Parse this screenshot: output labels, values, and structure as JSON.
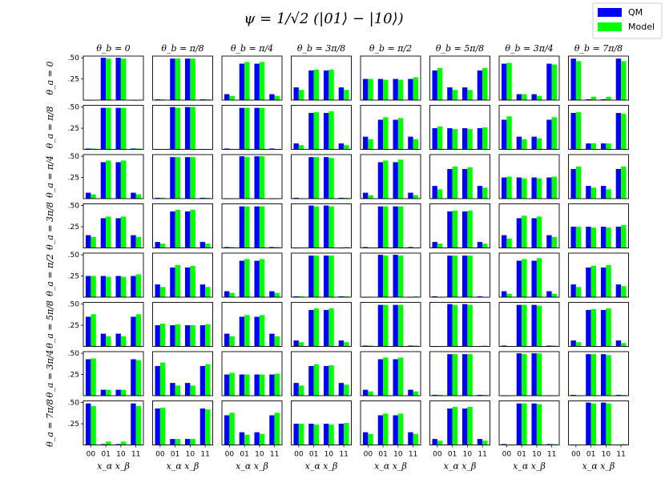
{
  "chart_data": {
    "type": "bar",
    "title": "ψ = 1/√2 (|01⟩ − |10⟩)",
    "title_parts": {
      "lhs": "ψ",
      "eq": "=",
      "num": "1",
      "den": "√2",
      "rhs": "(|01⟩ − |10⟩)"
    },
    "legend": [
      {
        "name": "QM",
        "color": "#0000ff"
      },
      {
        "name": "Model",
        "color": "#00ff00"
      }
    ],
    "column_labels": [
      "θ_b = 0",
      "θ_b = π/8",
      "θ_b = π/4",
      "θ_b = 3π/8",
      "θ_b = π/2",
      "θ_b = 5π/8",
      "θ_b = 3π/4",
      "θ_b = 7π/8"
    ],
    "row_labels": [
      "θ_a = 0",
      "θ_a = π/8",
      "θ_a = π/4",
      "θ_a = 3π/8",
      "θ_a = π/2",
      "θ_a = 5π/8",
      "θ_a = 3π/4",
      "θ_a = 7π/8"
    ],
    "categories": [
      "00",
      "01",
      "10",
      "11"
    ],
    "xlabel": "x_α x_β",
    "y_ticks": [
      ".25",
      ".50"
    ],
    "ylim": [
      0,
      0.52
    ],
    "grid": [
      [
        {
          "qm": [
            0.0,
            0.5,
            0.5,
            0.0
          ],
          "model": [
            0.0,
            0.49,
            0.49,
            0.0
          ]
        },
        {
          "qm": [
            0.01,
            0.49,
            0.49,
            0.01
          ],
          "model": [
            0.01,
            0.49,
            0.49,
            0.01
          ]
        },
        {
          "qm": [
            0.07,
            0.43,
            0.43,
            0.07
          ],
          "model": [
            0.05,
            0.45,
            0.45,
            0.05
          ]
        },
        {
          "qm": [
            0.15,
            0.35,
            0.35,
            0.15
          ],
          "model": [
            0.12,
            0.36,
            0.36,
            0.12
          ]
        },
        {
          "qm": [
            0.25,
            0.25,
            0.25,
            0.25
          ],
          "model": [
            0.25,
            0.24,
            0.24,
            0.27
          ]
        },
        {
          "qm": [
            0.35,
            0.15,
            0.15,
            0.35
          ],
          "model": [
            0.38,
            0.12,
            0.12,
            0.38
          ]
        },
        {
          "qm": [
            0.43,
            0.07,
            0.07,
            0.43
          ],
          "model": [
            0.44,
            0.07,
            0.05,
            0.42
          ]
        },
        {
          "qm": [
            0.49,
            0.01,
            0.01,
            0.49
          ],
          "model": [
            0.46,
            0.04,
            0.04,
            0.46
          ]
        }
      ],
      [
        {
          "qm": [
            0.01,
            0.49,
            0.49,
            0.01
          ],
          "model": [
            0.01,
            0.49,
            0.49,
            0.01
          ]
        },
        {
          "qm": [
            0.0,
            0.5,
            0.5,
            0.0
          ],
          "model": [
            0.0,
            0.49,
            0.5,
            0.0
          ]
        },
        {
          "qm": [
            0.01,
            0.49,
            0.49,
            0.01
          ],
          "model": [
            0.0,
            0.49,
            0.49,
            0.0
          ]
        },
        {
          "qm": [
            0.07,
            0.43,
            0.43,
            0.07
          ],
          "model": [
            0.05,
            0.44,
            0.45,
            0.05
          ]
        },
        {
          "qm": [
            0.15,
            0.35,
            0.35,
            0.15
          ],
          "model": [
            0.12,
            0.38,
            0.37,
            0.12
          ]
        },
        {
          "qm": [
            0.25,
            0.25,
            0.25,
            0.25
          ],
          "model": [
            0.27,
            0.24,
            0.24,
            0.26
          ]
        },
        {
          "qm": [
            0.35,
            0.15,
            0.15,
            0.35
          ],
          "model": [
            0.39,
            0.12,
            0.13,
            0.38
          ]
        },
        {
          "qm": [
            0.43,
            0.07,
            0.07,
            0.43
          ],
          "model": [
            0.44,
            0.07,
            0.07,
            0.42
          ]
        }
      ],
      [
        {
          "qm": [
            0.07,
            0.43,
            0.43,
            0.07
          ],
          "model": [
            0.05,
            0.45,
            0.45,
            0.05
          ]
        },
        {
          "qm": [
            0.01,
            0.49,
            0.49,
            0.01
          ],
          "model": [
            0.01,
            0.49,
            0.49,
            0.01
          ]
        },
        {
          "qm": [
            0.0,
            0.5,
            0.5,
            0.0
          ],
          "model": [
            0.0,
            0.49,
            0.5,
            0.0
          ]
        },
        {
          "qm": [
            0.01,
            0.49,
            0.49,
            0.01
          ],
          "model": [
            0.0,
            0.49,
            0.48,
            0.01
          ]
        },
        {
          "qm": [
            0.07,
            0.43,
            0.43,
            0.07
          ],
          "model": [
            0.04,
            0.45,
            0.46,
            0.04
          ]
        },
        {
          "qm": [
            0.15,
            0.35,
            0.35,
            0.15
          ],
          "model": [
            0.11,
            0.38,
            0.37,
            0.13
          ]
        },
        {
          "qm": [
            0.25,
            0.25,
            0.25,
            0.25
          ],
          "model": [
            0.26,
            0.24,
            0.24,
            0.26
          ]
        },
        {
          "qm": [
            0.35,
            0.15,
            0.15,
            0.35
          ],
          "model": [
            0.38,
            0.13,
            0.11,
            0.38
          ]
        }
      ],
      [
        {
          "qm": [
            0.15,
            0.35,
            0.35,
            0.15
          ],
          "model": [
            0.13,
            0.37,
            0.37,
            0.13
          ]
        },
        {
          "qm": [
            0.07,
            0.43,
            0.43,
            0.07
          ],
          "model": [
            0.05,
            0.45,
            0.45,
            0.05
          ]
        },
        {
          "qm": [
            0.01,
            0.49,
            0.49,
            0.01
          ],
          "model": [
            0.01,
            0.49,
            0.49,
            0.01
          ]
        },
        {
          "qm": [
            0.0,
            0.5,
            0.5,
            0.0
          ],
          "model": [
            0.0,
            0.49,
            0.49,
            0.01
          ]
        },
        {
          "qm": [
            0.01,
            0.49,
            0.49,
            0.01
          ],
          "model": [
            0.0,
            0.49,
            0.49,
            0.0
          ]
        },
        {
          "qm": [
            0.07,
            0.43,
            0.43,
            0.07
          ],
          "model": [
            0.05,
            0.44,
            0.44,
            0.05
          ]
        },
        {
          "qm": [
            0.15,
            0.35,
            0.35,
            0.15
          ],
          "model": [
            0.11,
            0.38,
            0.37,
            0.13
          ]
        },
        {
          "qm": [
            0.25,
            0.25,
            0.25,
            0.25
          ],
          "model": [
            0.25,
            0.24,
            0.24,
            0.27
          ]
        }
      ],
      [
        {
          "qm": [
            0.25,
            0.25,
            0.25,
            0.25
          ],
          "model": [
            0.25,
            0.24,
            0.24,
            0.27
          ]
        },
        {
          "qm": [
            0.15,
            0.35,
            0.35,
            0.15
          ],
          "model": [
            0.12,
            0.38,
            0.37,
            0.12
          ]
        },
        {
          "qm": [
            0.07,
            0.43,
            0.43,
            0.07
          ],
          "model": [
            0.05,
            0.45,
            0.45,
            0.05
          ]
        },
        {
          "qm": [
            0.01,
            0.49,
            0.49,
            0.01
          ],
          "model": [
            0.01,
            0.49,
            0.49,
            0.01
          ]
        },
        {
          "qm": [
            0.0,
            0.5,
            0.5,
            0.0
          ],
          "model": [
            0.0,
            0.49,
            0.49,
            0.01
          ]
        },
        {
          "qm": [
            0.01,
            0.49,
            0.49,
            0.01
          ],
          "model": [
            0.0,
            0.49,
            0.49,
            0.0
          ]
        },
        {
          "qm": [
            0.07,
            0.43,
            0.43,
            0.07
          ],
          "model": [
            0.04,
            0.45,
            0.46,
            0.04
          ]
        },
        {
          "qm": [
            0.15,
            0.35,
            0.35,
            0.15
          ],
          "model": [
            0.12,
            0.37,
            0.38,
            0.13
          ]
        }
      ],
      [
        {
          "qm": [
            0.35,
            0.15,
            0.15,
            0.35
          ],
          "model": [
            0.38,
            0.12,
            0.12,
            0.38
          ]
        },
        {
          "qm": [
            0.25,
            0.25,
            0.25,
            0.25
          ],
          "model": [
            0.27,
            0.26,
            0.25,
            0.26
          ]
        },
        {
          "qm": [
            0.15,
            0.35,
            0.35,
            0.15
          ],
          "model": [
            0.12,
            0.37,
            0.37,
            0.12
          ]
        },
        {
          "qm": [
            0.07,
            0.43,
            0.43,
            0.07
          ],
          "model": [
            0.05,
            0.45,
            0.45,
            0.05
          ]
        },
        {
          "qm": [
            0.01,
            0.49,
            0.49,
            0.01
          ],
          "model": [
            0.01,
            0.49,
            0.49,
            0.01
          ]
        },
        {
          "qm": [
            0.0,
            0.5,
            0.5,
            0.0
          ],
          "model": [
            0.0,
            0.49,
            0.49,
            0.01
          ]
        },
        {
          "qm": [
            0.01,
            0.49,
            0.49,
            0.01
          ],
          "model": [
            0.0,
            0.49,
            0.48,
            0.01
          ]
        },
        {
          "qm": [
            0.07,
            0.43,
            0.43,
            0.07
          ],
          "model": [
            0.05,
            0.44,
            0.45,
            0.04
          ]
        }
      ],
      [
        {
          "qm": [
            0.43,
            0.07,
            0.07,
            0.43
          ],
          "model": [
            0.44,
            0.07,
            0.07,
            0.42
          ]
        },
        {
          "qm": [
            0.35,
            0.15,
            0.15,
            0.35
          ],
          "model": [
            0.39,
            0.12,
            0.12,
            0.37
          ]
        },
        {
          "qm": [
            0.25,
            0.25,
            0.25,
            0.25
          ],
          "model": [
            0.27,
            0.25,
            0.25,
            0.26
          ]
        },
        {
          "qm": [
            0.15,
            0.35,
            0.35,
            0.15
          ],
          "model": [
            0.12,
            0.37,
            0.36,
            0.13
          ]
        },
        {
          "qm": [
            0.07,
            0.43,
            0.43,
            0.07
          ],
          "model": [
            0.05,
            0.45,
            0.45,
            0.05
          ]
        },
        {
          "qm": [
            0.01,
            0.49,
            0.49,
            0.01
          ],
          "model": [
            0.01,
            0.49,
            0.49,
            0.01
          ]
        },
        {
          "qm": [
            0.0,
            0.5,
            0.5,
            0.0
          ],
          "model": [
            0.0,
            0.49,
            0.5,
            0.0
          ]
        },
        {
          "qm": [
            0.01,
            0.49,
            0.49,
            0.01
          ],
          "model": [
            0.0,
            0.49,
            0.48,
            0.01
          ]
        }
      ],
      [
        {
          "qm": [
            0.49,
            0.01,
            0.01,
            0.49
          ],
          "model": [
            0.46,
            0.04,
            0.04,
            0.46
          ]
        },
        {
          "qm": [
            0.43,
            0.07,
            0.07,
            0.43
          ],
          "model": [
            0.44,
            0.07,
            0.07,
            0.42
          ]
        },
        {
          "qm": [
            0.35,
            0.15,
            0.15,
            0.35
          ],
          "model": [
            0.38,
            0.12,
            0.13,
            0.38
          ]
        },
        {
          "qm": [
            0.25,
            0.25,
            0.25,
            0.25
          ],
          "model": [
            0.25,
            0.24,
            0.24,
            0.26
          ]
        },
        {
          "qm": [
            0.15,
            0.35,
            0.35,
            0.15
          ],
          "model": [
            0.13,
            0.37,
            0.37,
            0.13
          ]
        },
        {
          "qm": [
            0.07,
            0.43,
            0.43,
            0.07
          ],
          "model": [
            0.05,
            0.45,
            0.45,
            0.05
          ]
        },
        {
          "qm": [
            0.01,
            0.49,
            0.49,
            0.01
          ],
          "model": [
            0.0,
            0.49,
            0.48,
            0.01
          ]
        },
        {
          "qm": [
            0.0,
            0.5,
            0.5,
            0.0
          ],
          "model": [
            0.0,
            0.49,
            0.49,
            0.01
          ]
        }
      ]
    ]
  }
}
